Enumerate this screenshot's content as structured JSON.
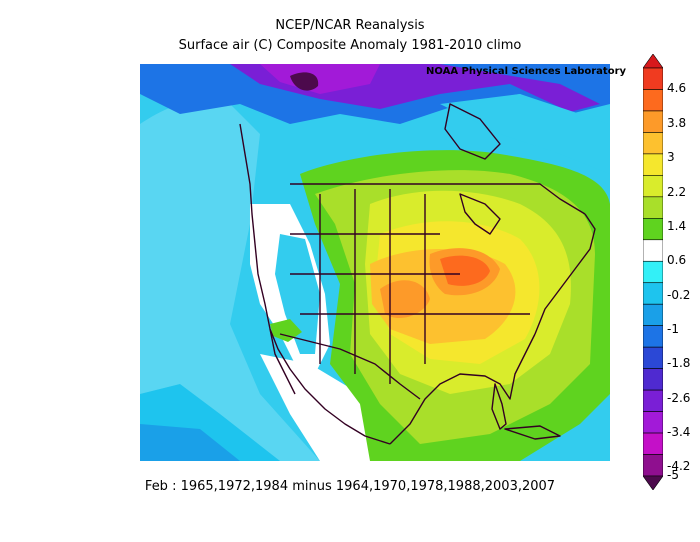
{
  "title_line1": "NCEP/NCAR Reanalysis",
  "title_line2": "Surface air (C) Composite Anomaly 1981-2010 climo",
  "credit": "NOAA Physical Sciences Laboratory",
  "footer": "Feb : 1965,1972,1984 minus 1964,1970,1978,1988,2003,2007",
  "colorbar": {
    "labels": [
      "4.6",
      "3.8",
      "3",
      "2.2",
      "1.4",
      "0.6",
      "-0.2",
      "-1",
      "-1.8",
      "-2.6",
      "-3.4",
      "-4.2",
      "-5"
    ],
    "colors": [
      "#d7191c",
      "#f03b20",
      "#fd6a1e",
      "#fd9a29",
      "#fdc12f",
      "#f5e72d",
      "#d9ec2c",
      "#a9df2a",
      "#5fd31f",
      "#ffffff",
      "#33f0f7",
      "#1ec4ee",
      "#1aa0e8",
      "#1d74e6",
      "#2b48d6",
      "#4f2ad0",
      "#7a1fd6",
      "#a21ad8",
      "#c410c8",
      "#8f0f8f",
      "#4c0a4c"
    ]
  }
}
